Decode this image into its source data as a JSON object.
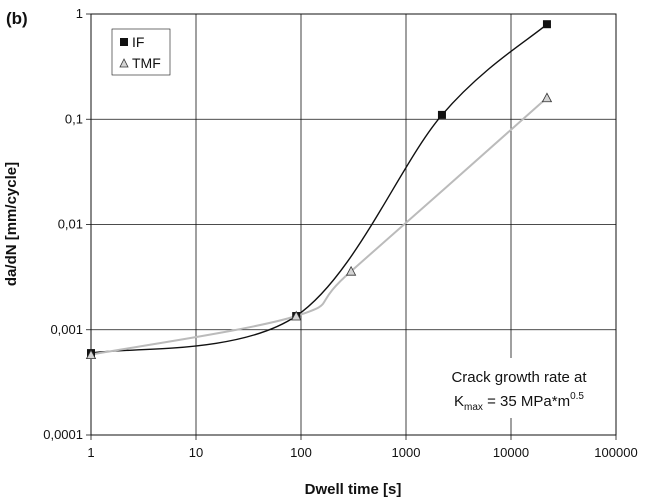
{
  "chart_data": {
    "type": "scatter",
    "panel_label": "(b)",
    "xlabel": "Dwell time [s]",
    "ylabel": "da/dN [mm/cycle]",
    "xscale": "log",
    "yscale": "log",
    "xlim": [
      1,
      100000
    ],
    "ylim": [
      0.0001,
      1
    ],
    "grid": true,
    "legend_position": "top-left",
    "x_tick_labels": [
      "1",
      "10",
      "100",
      "1000",
      "10000",
      "100000"
    ],
    "y_tick_labels": [
      "1",
      "0,1",
      "0,01",
      "0,001",
      "0,0001"
    ],
    "series": [
      {
        "name": "IF",
        "marker": "square",
        "color": "#111111",
        "x": [
          1,
          90,
          2200,
          22000
        ],
        "y": [
          0.0006,
          0.00135,
          0.11,
          0.8
        ]
      },
      {
        "name": "TMF",
        "marker": "triangle",
        "color": "#bbbbbb",
        "x": [
          1,
          90,
          300,
          22000
        ],
        "y": [
          0.00058,
          0.00135,
          0.0036,
          0.16
        ]
      }
    ],
    "annotation": {
      "line1": "Crack growth rate at",
      "k": "K",
      "k_sub": "max",
      "eq": " = 35 MPa*m",
      "exp": "0.5"
    }
  }
}
